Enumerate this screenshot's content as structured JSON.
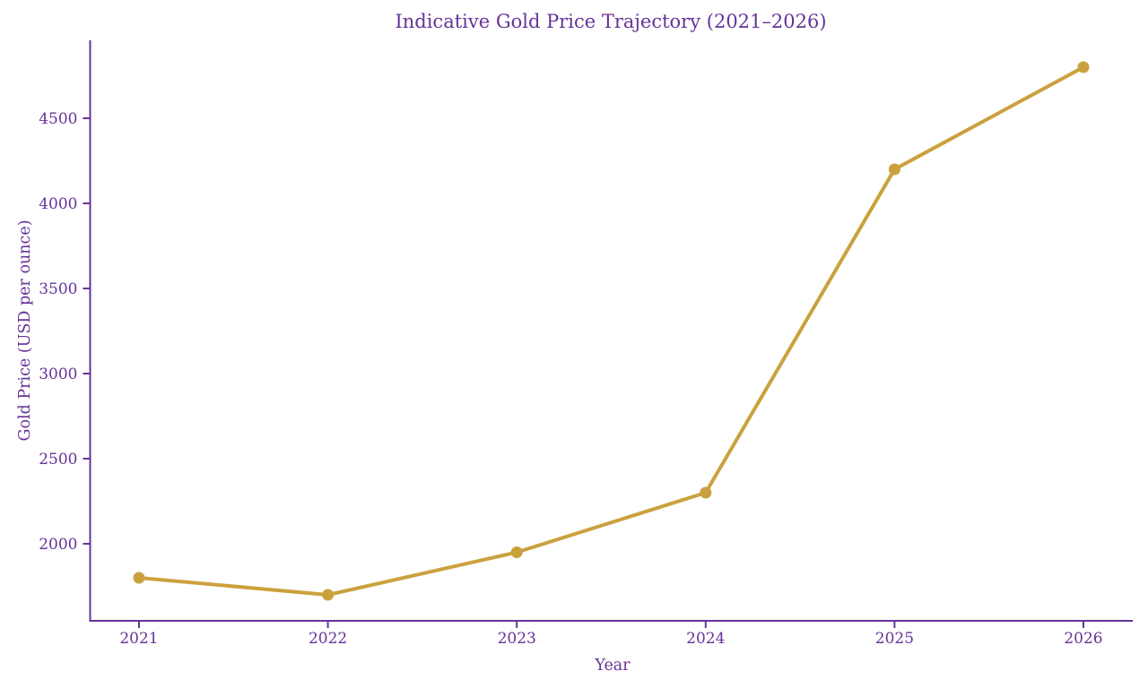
{
  "title": "Indicative Gold Price Trajectory (2021–2026)",
  "colors": {
    "text_and_axes": "#663399",
    "line": "#CBA13E",
    "background": "#ffffff"
  },
  "chart_data": {
    "type": "line",
    "title": "Indicative Gold Price Trajectory (2021–2026)",
    "xlabel": "Year",
    "ylabel": "Gold Price (USD per ounce)",
    "x": [
      2021,
      2022,
      2023,
      2024,
      2025,
      2026
    ],
    "series": [
      {
        "name": "Gold Price (USD per ounce)",
        "values": [
          1800,
          1700,
          1950,
          2300,
          4200,
          4800
        ]
      }
    ],
    "xticks": [
      "2021",
      "2022",
      "2023",
      "2024",
      "2025",
      "2026"
    ],
    "yticks": [
      2000,
      2500,
      3000,
      3500,
      4000,
      4500
    ],
    "ylim": [
      1550,
      4960
    ],
    "xlim": [
      2020.74,
      2026.26
    ],
    "grid": false,
    "legend": false,
    "marker": "circle",
    "line_color": "#CBA13E",
    "marker_color": "#CBA13E"
  }
}
